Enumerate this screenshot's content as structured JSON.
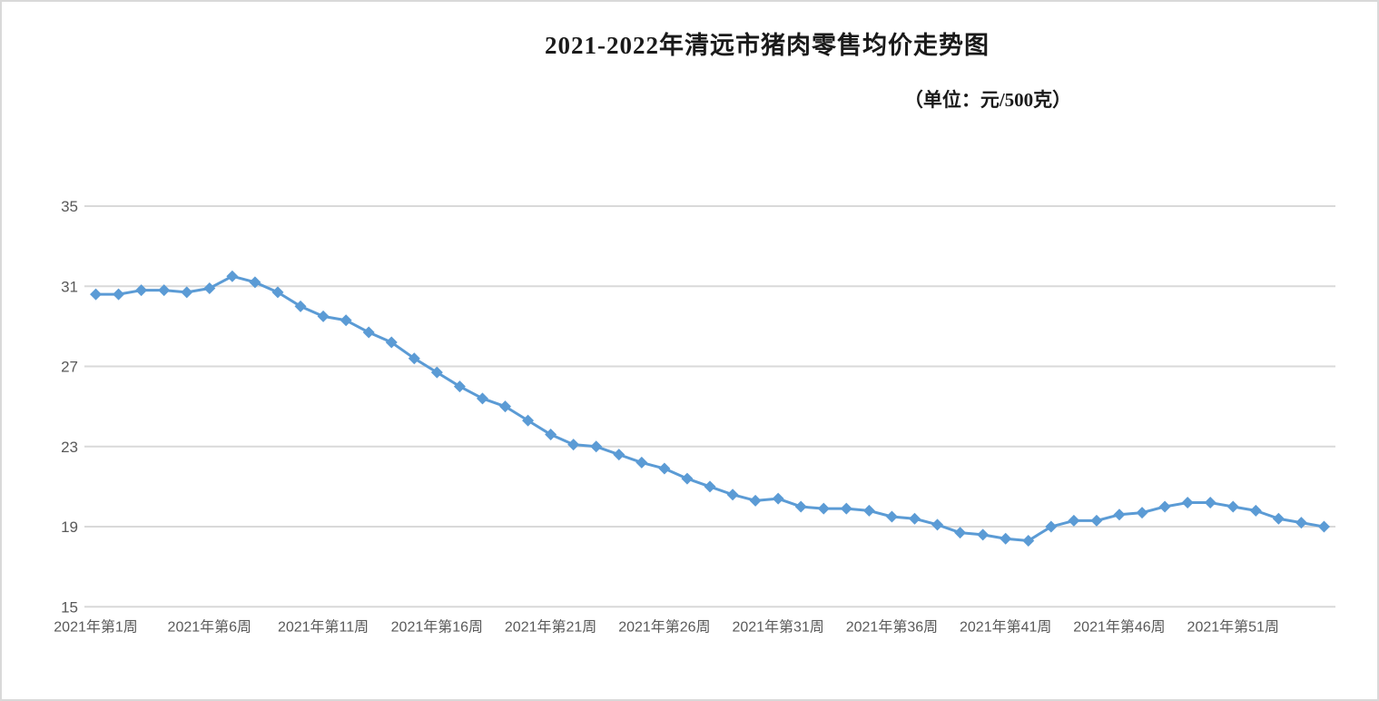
{
  "chart_data": {
    "type": "line",
    "title": "2021-2022年清远市猪肉零售均价走势图",
    "unit_label": "（单位：元/500克）",
    "xlabel": "",
    "ylabel": "",
    "ylim": [
      15,
      35
    ],
    "y_ticks": [
      35,
      31,
      27,
      23,
      19,
      15
    ],
    "x_ticks": [
      {
        "i": 0,
        "label": "2021年第1周"
      },
      {
        "i": 5,
        "label": "2021年第6周"
      },
      {
        "i": 10,
        "label": "2021年第11周"
      },
      {
        "i": 15,
        "label": "2021年第16周"
      },
      {
        "i": 20,
        "label": "2021年第21周"
      },
      {
        "i": 25,
        "label": "2021年第26周"
      },
      {
        "i": 30,
        "label": "2021年第31周"
      },
      {
        "i": 35,
        "label": "2021年第36周"
      },
      {
        "i": 40,
        "label": "2021年第41周"
      },
      {
        "i": 45,
        "label": "2021年第46周"
      },
      {
        "i": 50,
        "label": "2021年第51周"
      }
    ],
    "categories": [
      "2021年第1周",
      "2021年第2周",
      "2021年第3周",
      "2021年第4周",
      "2021年第5周",
      "2021年第6周",
      "2021年第7周",
      "2021年第8周",
      "2021年第9周",
      "2021年第10周",
      "2021年第11周",
      "2021年第12周",
      "2021年第13周",
      "2021年第14周",
      "2021年第15周",
      "2021年第16周",
      "2021年第17周",
      "2021年第18周",
      "2021年第19周",
      "2021年第20周",
      "2021年第21周",
      "2021年第22周",
      "2021年第23周",
      "2021年第24周",
      "2021年第25周",
      "2021年第26周",
      "2021年第27周",
      "2021年第28周",
      "2021年第29周",
      "2021年第30周",
      "2021年第31周",
      "2021年第32周",
      "2021年第33周",
      "2021年第34周",
      "2021年第35周",
      "2021年第36周",
      "2021年第37周",
      "2021年第38周",
      "2021年第39周",
      "2021年第40周",
      "2021年第41周",
      "2021年第42周",
      "2021年第43周",
      "2021年第44周",
      "2021年第45周",
      "2021年第46周",
      "2021年第47周",
      "2021年第48周",
      "2021年第49周",
      "2021年第50周",
      "2021年第51周",
      "2021年第52周",
      "2022年第1周",
      "2022年第2周",
      "2022年第3周"
    ],
    "values": [
      30.6,
      30.6,
      30.8,
      30.8,
      30.7,
      30.9,
      31.5,
      31.2,
      30.7,
      30.0,
      29.5,
      29.3,
      28.7,
      28.2,
      27.4,
      26.7,
      26.0,
      25.4,
      25.0,
      24.3,
      23.6,
      23.1,
      23.0,
      22.6,
      22.2,
      21.9,
      21.4,
      21.0,
      20.6,
      20.3,
      20.4,
      20.0,
      19.9,
      19.9,
      19.8,
      19.5,
      19.4,
      19.1,
      18.7,
      18.6,
      18.4,
      18.3,
      19.0,
      19.3,
      19.3,
      19.6,
      19.7,
      20.0,
      20.2,
      20.2,
      20.0,
      19.8,
      19.4,
      19.2,
      19.0
    ],
    "legend": "none",
    "grid": "horizontal",
    "marker": "diamond",
    "colors": {
      "line": "#5B9BD5",
      "gridline": "#D9D9D9",
      "tick_text": "#595959",
      "title_text": "#1a1a1a"
    }
  }
}
